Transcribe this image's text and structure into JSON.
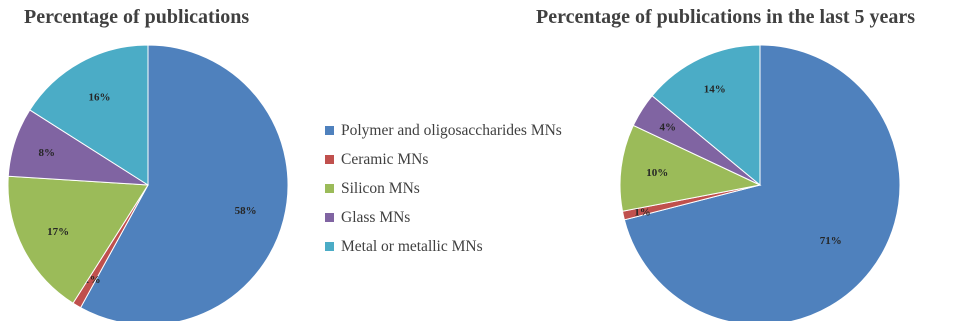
{
  "chart_data": [
    {
      "type": "pie",
      "title": "Percentage of publications",
      "categories": [
        "Polymer and oligosaccharides MNs",
        "Ceramic MNs",
        "Silicon MNs",
        "Glass MNs",
        "Metal or metallic MNs"
      ],
      "values": [
        58,
        1,
        17,
        8,
        16
      ],
      "labels": [
        "58%",
        "1%",
        "17%",
        "8%",
        "16%"
      ],
      "colors": [
        "#4f81bd",
        "#c0504d",
        "#9bbb59",
        "#8064a2",
        "#4bacc6"
      ],
      "legend": "center"
    },
    {
      "type": "pie",
      "title": "Percentage of publications in the last 5 years",
      "categories": [
        "Polymer and oligosaccharides MNs",
        "Ceramic MNs",
        "Silicon MNs",
        "Glass MNs",
        "Metal or metallic MNs"
      ],
      "values": [
        71,
        1,
        10,
        4,
        14
      ],
      "labels": [
        "71%",
        "1%",
        "10%",
        "4%",
        "14%"
      ],
      "colors": [
        "#4f81bd",
        "#c0504d",
        "#9bbb59",
        "#8064a2",
        "#4bacc6"
      ],
      "legend": "center"
    }
  ],
  "legend": {
    "items": [
      {
        "label": "Polymer and oligosaccharides MNs",
        "color": "#4f81bd"
      },
      {
        "label": "Ceramic MNs",
        "color": "#c0504d"
      },
      {
        "label": "Silicon MNs",
        "color": "#9bbb59"
      },
      {
        "label": "Glass MNs",
        "color": "#8064a2"
      },
      {
        "label": "Metal or metallic MNs",
        "color": "#4bacc6"
      }
    ]
  }
}
